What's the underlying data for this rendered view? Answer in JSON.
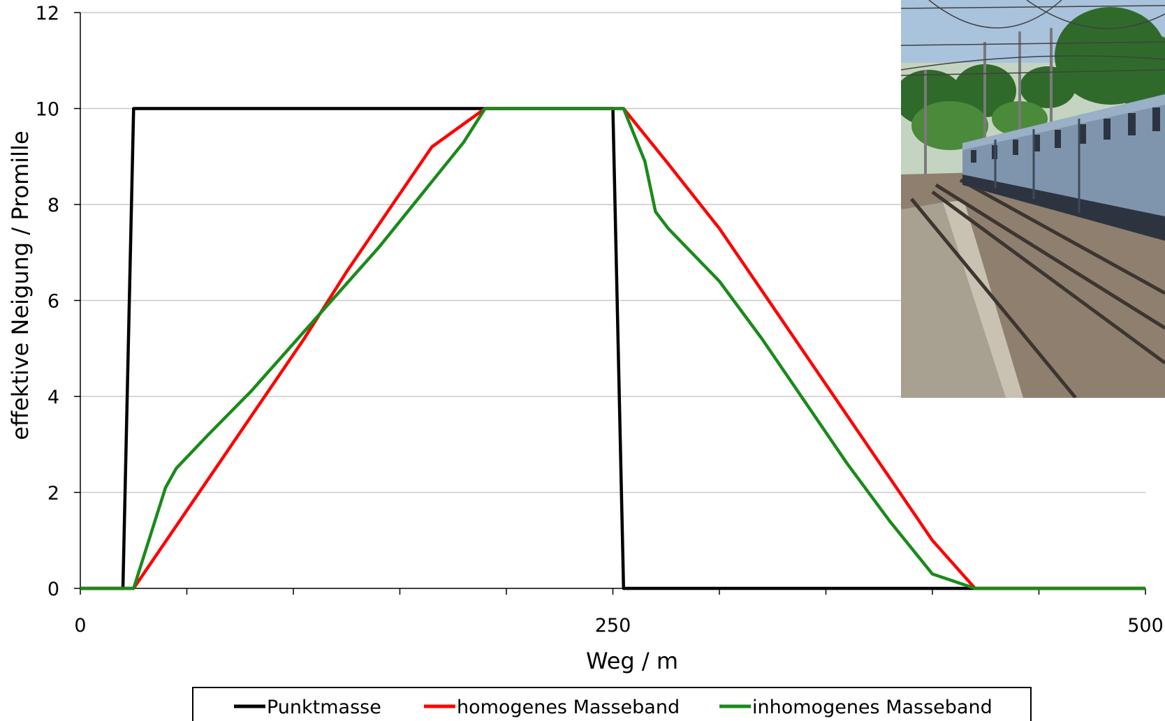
{
  "chart_data": {
    "type": "line",
    "xlabel": "Weg / m",
    "ylabel": "effektive Neigung / Promille",
    "xlim": [
      0,
      500
    ],
    "ylim": [
      0,
      12
    ],
    "xticks": [
      0,
      250,
      500
    ],
    "yticks": [
      0,
      2,
      4,
      6,
      8,
      10,
      12
    ],
    "x_minor_ticks": [
      50,
      100,
      150,
      200,
      300,
      350,
      400,
      450
    ],
    "grid": "horizontal",
    "legend_position": "bottom",
    "series": [
      {
        "name": "Punktmasse",
        "color": "#000000",
        "points": [
          [
            0,
            0
          ],
          [
            20,
            0
          ],
          [
            25,
            10
          ],
          [
            250,
            10
          ],
          [
            255,
            0
          ],
          [
            500,
            0
          ]
        ]
      },
      {
        "name": "homogenes Masseband",
        "color": "#ff0000",
        "points": [
          [
            0,
            0
          ],
          [
            25,
            0
          ],
          [
            45,
            1.3
          ],
          [
            65,
            2.6
          ],
          [
            85,
            3.9
          ],
          [
            105,
            5.2
          ],
          [
            125,
            6.6
          ],
          [
            145,
            7.9
          ],
          [
            165,
            9.2
          ],
          [
            190,
            10
          ],
          [
            255,
            10
          ],
          [
            275,
            8.9
          ],
          [
            300,
            7.5
          ],
          [
            320,
            6.2
          ],
          [
            340,
            4.9
          ],
          [
            360,
            3.6
          ],
          [
            380,
            2.3
          ],
          [
            400,
            1.0
          ],
          [
            420,
            0
          ],
          [
            500,
            0
          ]
        ]
      },
      {
        "name": "inhomogenes Masseband",
        "color": "#1a8a1a",
        "points": [
          [
            0,
            0
          ],
          [
            25,
            0
          ],
          [
            40,
            2.1
          ],
          [
            45,
            2.5
          ],
          [
            60,
            3.2
          ],
          [
            80,
            4.1
          ],
          [
            100,
            5.1
          ],
          [
            120,
            6.1
          ],
          [
            140,
            7.1
          ],
          [
            160,
            8.2
          ],
          [
            180,
            9.3
          ],
          [
            190,
            10
          ],
          [
            255,
            10
          ],
          [
            265,
            8.9
          ],
          [
            270,
            7.85
          ],
          [
            276,
            7.5
          ],
          [
            300,
            6.4
          ],
          [
            320,
            5.2
          ],
          [
            340,
            3.9
          ],
          [
            360,
            2.6
          ],
          [
            380,
            1.4
          ],
          [
            400,
            0.3
          ],
          [
            420,
            0
          ],
          [
            500,
            0
          ]
        ]
      }
    ]
  },
  "photo": {
    "subject": "passenger-train-at-station"
  }
}
